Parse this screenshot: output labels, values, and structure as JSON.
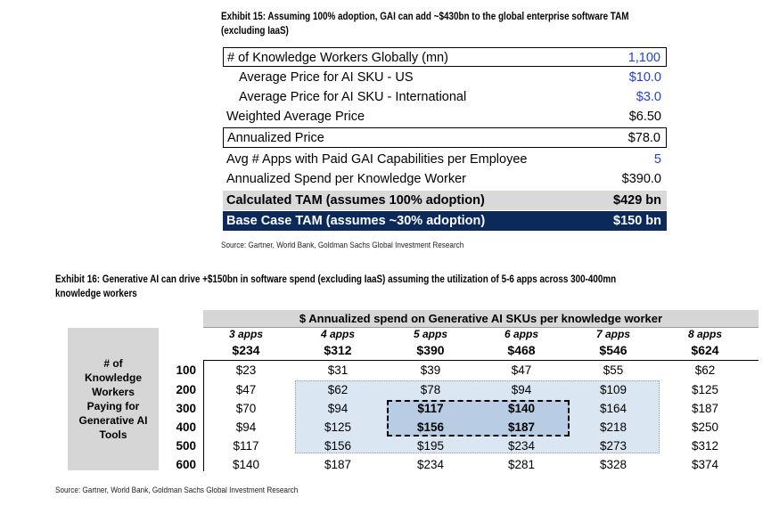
{
  "exhibit15": {
    "title_line1": "Exhibit 15: Assuming 100% adoption, GAI can add ~$430bn to the global enterprise software TAM",
    "title_line2": "(excluding IaaS)",
    "rows": [
      {
        "label": "# of Knowledge Workers Globally (mn)",
        "value": "1,100"
      },
      {
        "label": "Average Price for AI SKU - US",
        "value": "$10.0"
      },
      {
        "label": "Average Price for AI SKU - International",
        "value": "$3.0"
      },
      {
        "label": "Weighted Average Price",
        "value": "$6.50"
      },
      {
        "label": "Annualized Price",
        "value": "$78.0"
      },
      {
        "label": "Avg # Apps with Paid GAI Capabilities per Employee",
        "value": "5"
      },
      {
        "label": "Annualized Spend per Knowledge Worker",
        "value": "$390.0"
      },
      {
        "label": "Calculated TAM (assumes 100% adoption)",
        "value": "$429 bn"
      },
      {
        "label": "Base Case TAM (assumes ~30% adoption)",
        "value": "$150 bn"
      }
    ],
    "source": "Source: Gartner, World Bank, Goldman Sachs Global Investment Research"
  },
  "exhibit16": {
    "title_line1": "Exhibit 16: Generative AI can drive +$150bn in software spend (excluding IaaS) assuming the utilization of 5-6 apps across 300-400mn",
    "title_line2": "knowledge workers",
    "header": "$ Annualized spend on Generative AI SKUs per knowledge worker",
    "columns": [
      {
        "apps": "3 apps",
        "price": "$234"
      },
      {
        "apps": "4 apps",
        "price": "$312"
      },
      {
        "apps": "5 apps",
        "price": "$390"
      },
      {
        "apps": "6 apps",
        "price": "$468"
      },
      {
        "apps": "7 apps",
        "price": "$546"
      },
      {
        "apps": "8 apps",
        "price": "$624"
      }
    ],
    "row_header_lines": [
      "# of",
      "Knowledge",
      "Workers",
      "Paying for",
      "Generative AI",
      "Tools"
    ],
    "rows": [
      {
        "label": "100",
        "cells": [
          "$23",
          "$31",
          "$39",
          "$47",
          "$55",
          "$62"
        ]
      },
      {
        "label": "200",
        "cells": [
          "$47",
          "$62",
          "$78",
          "$94",
          "$109",
          "$125"
        ]
      },
      {
        "label": "300",
        "cells": [
          "$70",
          "$94",
          "$117",
          "$140",
          "$164",
          "$187"
        ]
      },
      {
        "label": "400",
        "cells": [
          "$94",
          "$125",
          "$156",
          "$187",
          "$218",
          "$250"
        ]
      },
      {
        "label": "500",
        "cells": [
          "$117",
          "$156",
          "$195",
          "$234",
          "$273",
          "$312"
        ]
      },
      {
        "label": "600",
        "cells": [
          "$140",
          "$187",
          "$234",
          "$281",
          "$328",
          "$374"
        ]
      }
    ],
    "source": "Source: Gartner, World Bank, Goldman Sachs Global Investment Research"
  },
  "colors": {
    "navy": "#0b2a5b",
    "blue_value": "#1f3fd8",
    "grey": "#d6d6d6",
    "light_blue": "#dbe6f3",
    "mid_blue": "#b8cce4"
  }
}
